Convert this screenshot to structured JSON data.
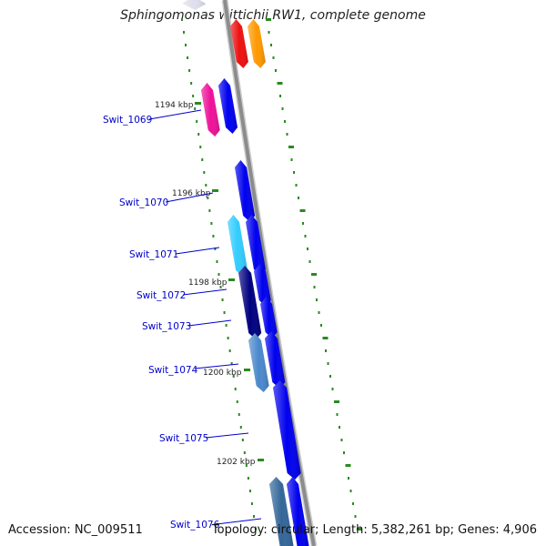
{
  "title": "Sphingomonas wittichii RW1, complete genome",
  "footer": {
    "accession": "Accession: NC_009511",
    "summary": "Topology: circular; Length: 5,382,261 bp; Genes: 4,906"
  },
  "colors": {
    "backbone": "#8c8c8c",
    "tick": "#2a8a1f",
    "gene_label": "#0000cc",
    "pointer_line": "#0000cc"
  },
  "ticks": [
    {
      "text": "1194 kbp"
    },
    {
      "text": "1196 kbp"
    },
    {
      "text": "1198 kbp"
    },
    {
      "text": "1200 kbp"
    },
    {
      "text": "1202 kbp"
    }
  ],
  "gene_labels": [
    {
      "text": "Swit_1069"
    },
    {
      "text": "Swit_1070"
    },
    {
      "text": "Swit_1071"
    },
    {
      "text": "Swit_1072"
    },
    {
      "text": "Swit_1073"
    },
    {
      "text": "Swit_1074"
    },
    {
      "text": "Swit_1075"
    },
    {
      "text": "Swit_1076"
    }
  ],
  "genes": [
    {
      "track": "top",
      "color": "#dedeed"
    },
    {
      "track": "top",
      "color": "#ee1111"
    },
    {
      "track": "top",
      "color": "#ff9900"
    },
    {
      "track": "upper",
      "color": "#ee1199"
    },
    {
      "track": "upper",
      "color": "#0000ee"
    },
    {
      "track": "main",
      "color": "#0000ee"
    },
    {
      "track": "main",
      "color": "#33ccff"
    },
    {
      "track": "main",
      "color": "#0000ee"
    },
    {
      "track": "main",
      "color": "#000080"
    },
    {
      "track": "main",
      "color": "#0000ee"
    },
    {
      "track": "main",
      "color": "#0000ee"
    },
    {
      "track": "main",
      "color": "#4a88cc"
    },
    {
      "track": "main",
      "color": "#0000ee"
    },
    {
      "track": "main",
      "color": "#0000ee"
    },
    {
      "track": "main",
      "color": "#336699"
    },
    {
      "track": "main",
      "color": "#0000ee"
    }
  ]
}
